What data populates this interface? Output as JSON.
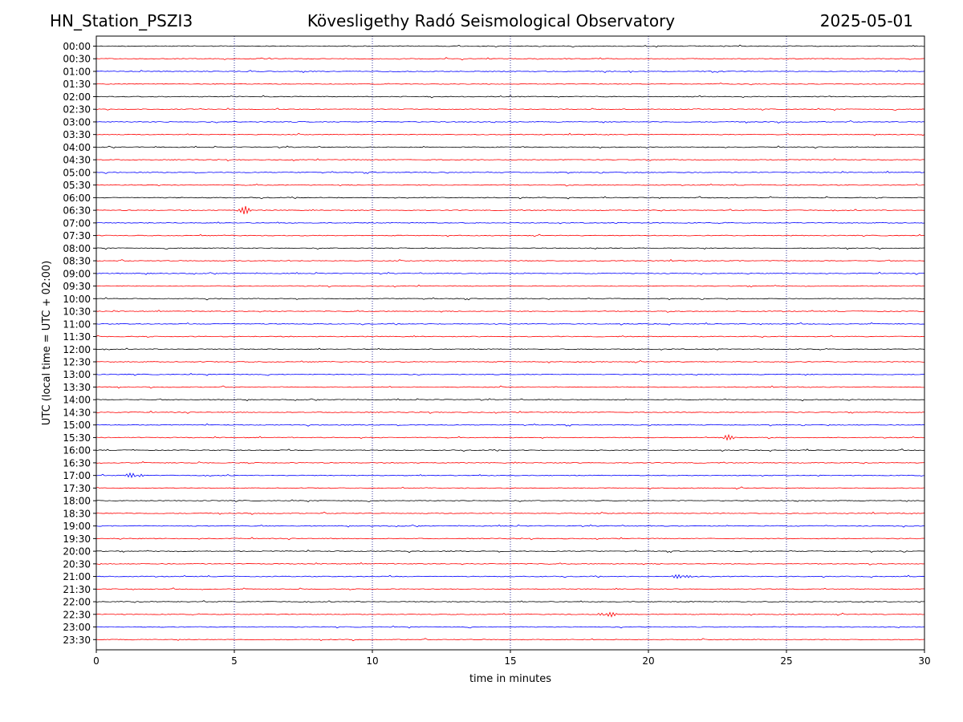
{
  "header": {
    "station": "HN_Station_PSZI3",
    "observatory": "Kövesligethy Radó Seismological Observatory",
    "date": "2025-05-01"
  },
  "chart_data": {
    "type": "line",
    "description_labels": {
      "xlabel": "time in minutes",
      "ylabel": "UTC (local time = UTC + 02:00)"
    },
    "xlim": [
      0,
      30
    ],
    "x_ticks": [
      0,
      5,
      10,
      15,
      20,
      25,
      30
    ],
    "grid_x": [
      5,
      10,
      15,
      20,
      25
    ],
    "rows": [
      "00:00",
      "00:30",
      "01:00",
      "01:30",
      "02:00",
      "02:30",
      "03:00",
      "03:30",
      "04:00",
      "04:30",
      "05:00",
      "05:30",
      "06:00",
      "06:30",
      "07:00",
      "07:30",
      "08:00",
      "08:30",
      "09:00",
      "09:30",
      "10:00",
      "10:30",
      "11:00",
      "11:30",
      "12:00",
      "12:30",
      "13:00",
      "13:30",
      "14:00",
      "14:30",
      "15:00",
      "15:30",
      "16:00",
      "16:30",
      "17:00",
      "17:30",
      "18:00",
      "18:30",
      "19:00",
      "19:30",
      "20:00",
      "20:30",
      "21:00",
      "21:30",
      "22:00",
      "22:30",
      "23:00",
      "23:30"
    ],
    "trace_colors": [
      "#000000",
      "#ff0000",
      "#0000ff",
      "#ff0000"
    ],
    "grid_color": "#000080",
    "events": [
      {
        "row": "15:30",
        "minute": 22.8
      },
      {
        "row": "17:00",
        "minute": 1.4
      },
      {
        "row": "22:30",
        "minute": 18.5
      },
      {
        "row": "21:00",
        "minute": 21.2
      },
      {
        "row": "06:30",
        "minute": 5.4
      }
    ]
  }
}
